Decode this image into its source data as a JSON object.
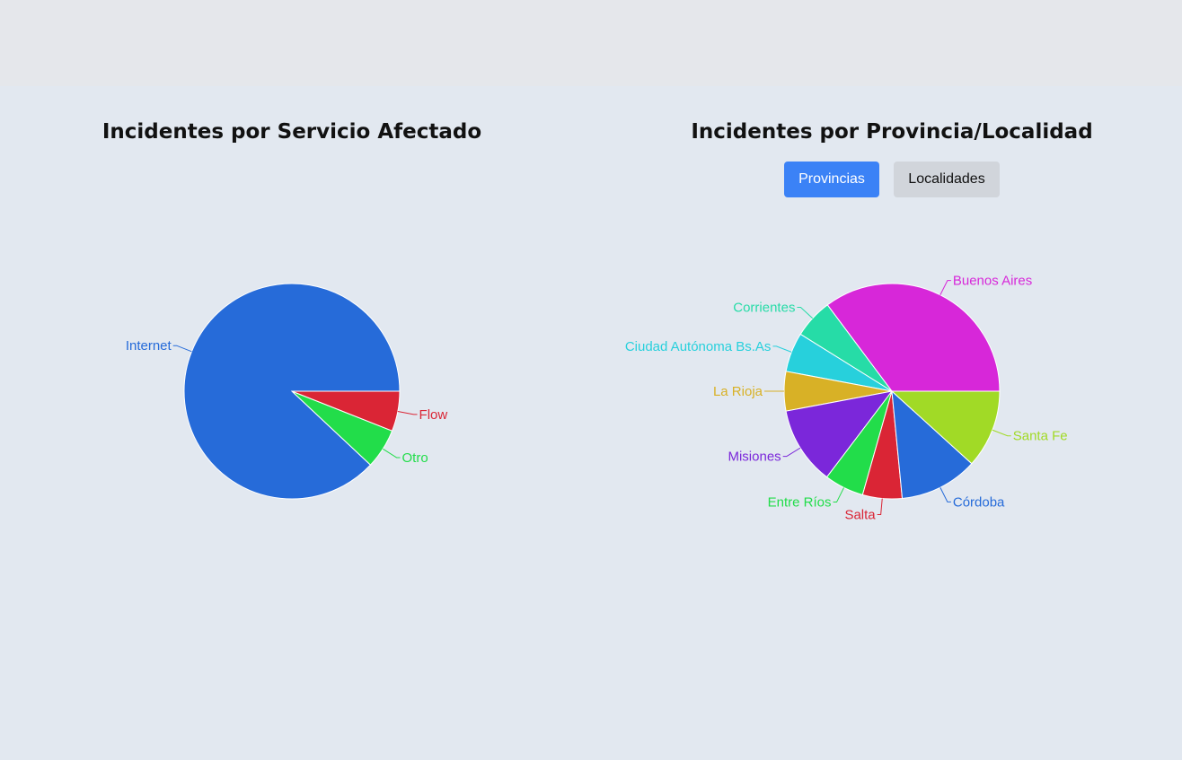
{
  "chart_data": [
    {
      "type": "pie",
      "title": "Incidentes por Servicio Afectado",
      "categories": [
        "Internet",
        "Otro",
        "Flow"
      ],
      "values": [
        88,
        6,
        6
      ],
      "colors": [
        "#266bd9",
        "#22dd4a",
        "#da2535"
      ]
    },
    {
      "type": "pie",
      "title": "Incidentes por Provincia/Localidad",
      "categories": [
        "Buenos Aires",
        "Corrientes",
        "Ciudad Autónoma Bs.As",
        "La Rioja",
        "Misiones",
        "Entre Ríos",
        "Salta",
        "Córdoba",
        "Santa Fe"
      ],
      "values": [
        33.3,
        5.6,
        5.6,
        5.6,
        11.1,
        5.6,
        5.6,
        11.1,
        11.1
      ],
      "colors": [
        "#d727d9",
        "#26dca7",
        "#27d0dc",
        "#d8b126",
        "#7b27da",
        "#22dd4a",
        "#da2535",
        "#266bd9",
        "#a1da26"
      ]
    }
  ],
  "toggle": {
    "provincias_label": "Provincias",
    "localidades_label": "Localidades",
    "active": "Provincias",
    "active_color": "#3b82f6",
    "inactive_color": "#d1d5db"
  }
}
